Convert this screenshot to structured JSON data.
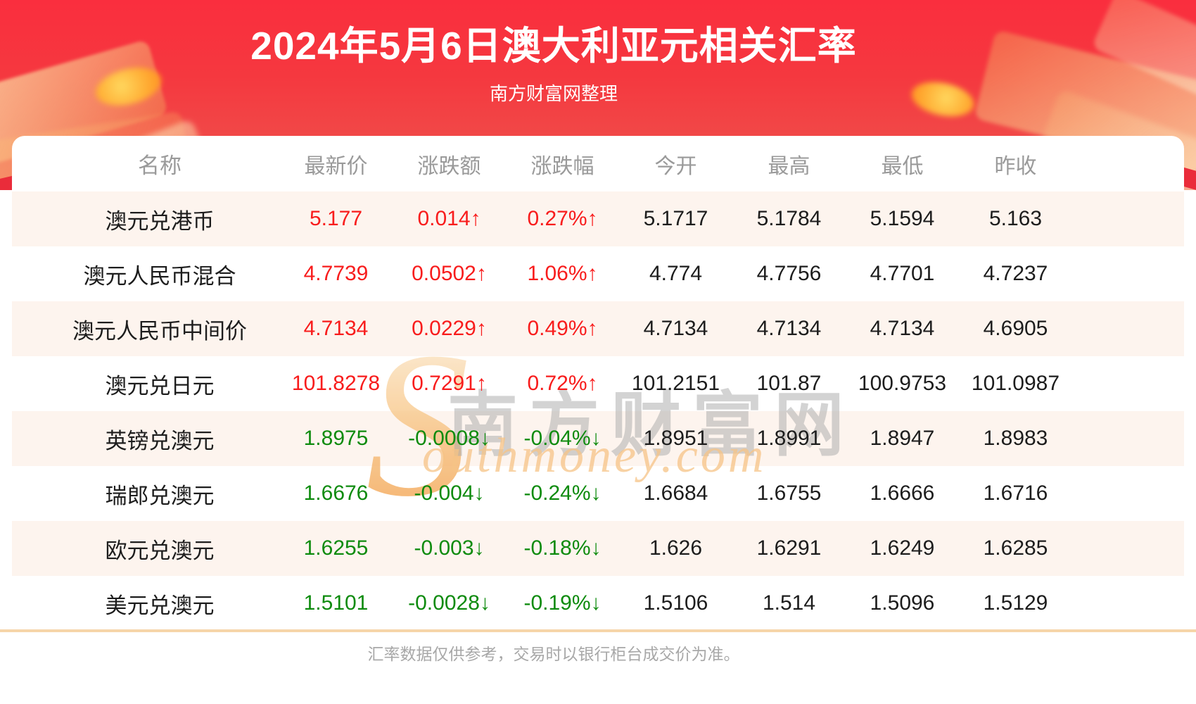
{
  "header": {
    "title": "2024年5月6日澳大利亚元相关汇率",
    "subtitle": "南方财富网整理"
  },
  "table": {
    "columns": [
      "名称",
      "最新价",
      "涨跌额",
      "涨跌幅",
      "今开",
      "最高",
      "最低",
      "昨收"
    ],
    "rows": [
      {
        "name": "澳元兑港币",
        "latest": "5.177",
        "change": "0.014↑",
        "change_pct": "0.27%↑",
        "open": "5.1717",
        "high": "5.1784",
        "low": "5.1594",
        "prev_close": "5.163",
        "direction": "up"
      },
      {
        "name": "澳元人民币混合",
        "latest": "4.7739",
        "change": "0.0502↑",
        "change_pct": "1.06%↑",
        "open": "4.774",
        "high": "4.7756",
        "low": "4.7701",
        "prev_close": "4.7237",
        "direction": "up"
      },
      {
        "name": "澳元人民币中间价",
        "latest": "4.7134",
        "change": "0.0229↑",
        "change_pct": "0.49%↑",
        "open": "4.7134",
        "high": "4.7134",
        "low": "4.7134",
        "prev_close": "4.6905",
        "direction": "up"
      },
      {
        "name": "澳元兑日元",
        "latest": "101.8278",
        "change": "0.7291↑",
        "change_pct": "0.72%↑",
        "open": "101.2151",
        "high": "101.87",
        "low": "100.9753",
        "prev_close": "101.0987",
        "direction": "up"
      },
      {
        "name": "英镑兑澳元",
        "latest": "1.8975",
        "change": "-0.0008↓",
        "change_pct": "-0.04%↓",
        "open": "1.8951",
        "high": "1.8991",
        "low": "1.8947",
        "prev_close": "1.8983",
        "direction": "down"
      },
      {
        "name": "瑞郎兑澳元",
        "latest": "1.6676",
        "change": "-0.004↓",
        "change_pct": "-0.24%↓",
        "open": "1.6684",
        "high": "1.6755",
        "low": "1.6666",
        "prev_close": "1.6716",
        "direction": "down"
      },
      {
        "name": "欧元兑澳元",
        "latest": "1.6255",
        "change": "-0.003↓",
        "change_pct": "-0.18%↓",
        "open": "1.626",
        "high": "1.6291",
        "low": "1.6249",
        "prev_close": "1.6285",
        "direction": "down"
      },
      {
        "name": "美元兑澳元",
        "latest": "1.5101",
        "change": "-0.0028↓",
        "change_pct": "-0.19%↓",
        "open": "1.5106",
        "high": "1.514",
        "low": "1.5096",
        "prev_close": "1.5129",
        "direction": "down"
      }
    ]
  },
  "watermark": {
    "s": "S",
    "cn": "南方财富网",
    "en": "outhmoney.com"
  },
  "footer": {
    "disclaimer": "汇率数据仅供参考，交易时以银行柜台成交价为准。"
  },
  "colors": {
    "up": "#f81c1c",
    "down": "#0e8b0e",
    "header_red_top": "#fa2e3e",
    "header_red_bottom": "#ef5a50",
    "row_alt": "#fdf4ee",
    "divider": "#f6d5a9",
    "muted_text": "#9a9a9a",
    "gold_decor": "#f8c98c"
  }
}
